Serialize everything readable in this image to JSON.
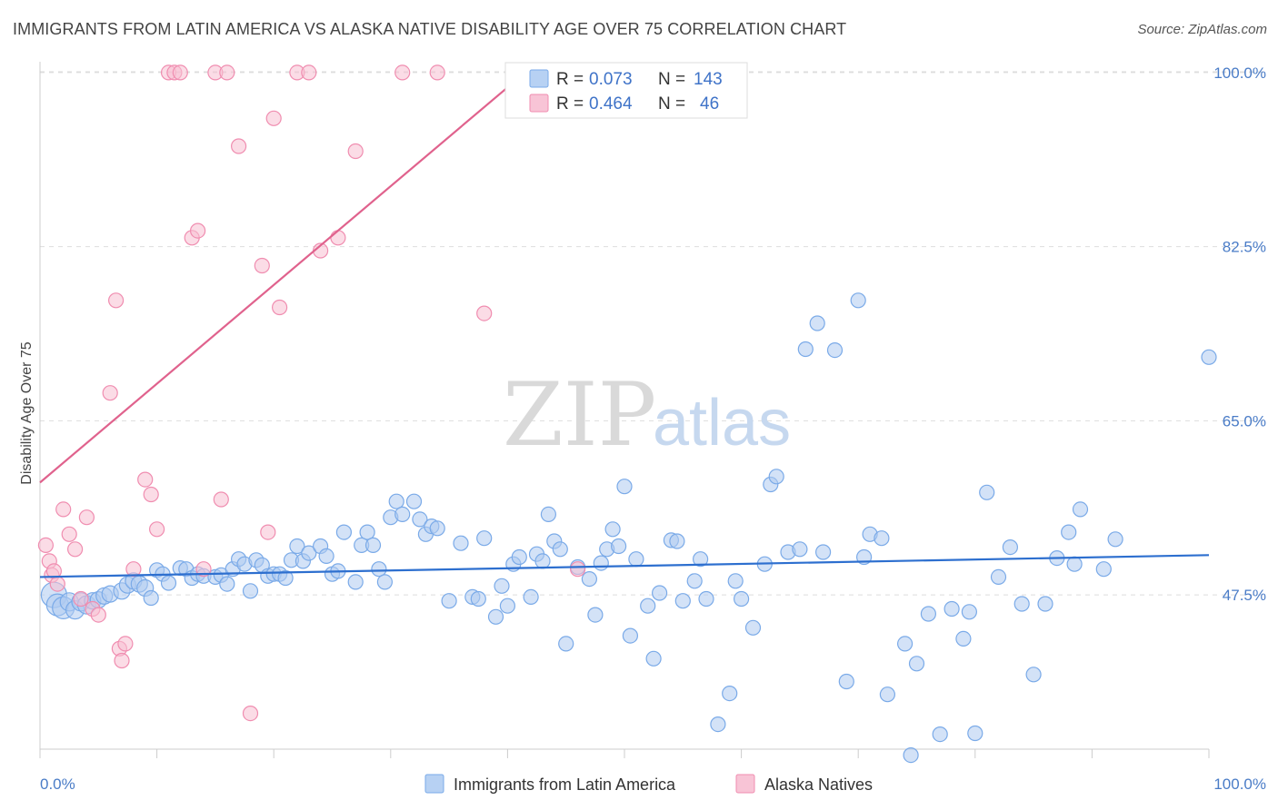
{
  "title": "IMMIGRANTS FROM LATIN AMERICA VS ALASKA NATIVE DISABILITY AGE OVER 75 CORRELATION CHART",
  "source": "Source: ZipAtlas.com",
  "watermark": {
    "zip": "ZIP",
    "atlas": "atlas"
  },
  "colors": {
    "blue": "#7aaae8",
    "blue_fill": "#aecbf1",
    "blue_line": "#2d6fcf",
    "pink": "#f08db0",
    "pink_fill": "#f7bfd2",
    "pink_line": "#e0628d",
    "grid": "#dddddd",
    "tick_label": "#4a7cc7"
  },
  "legend": {
    "rows": [
      {
        "r_label": "R =",
        "r_value": "0.073",
        "n_label": "N =",
        "n_value": "143"
      },
      {
        "r_label": "R =",
        "r_value": "0.464",
        "n_label": "N =",
        "n_value": "46"
      }
    ]
  },
  "chart_data": {
    "type": "scatter",
    "title": "IMMIGRANTS FROM LATIN AMERICA VS ALASKA NATIVE DISABILITY AGE OVER 75 CORRELATION CHART",
    "xlabel": "",
    "ylabel": "Disability Age Over 75",
    "xlim": [
      0,
      100
    ],
    "ylim": [
      32,
      102
    ],
    "x_tick_labels": [
      "0.0%",
      "100.0%"
    ],
    "y_ticks": [
      47.5,
      65.0,
      82.5,
      100.0
    ],
    "y_tick_labels": [
      "47.5%",
      "65.0%",
      "82.5%",
      "100.0%"
    ],
    "grid": true,
    "legend_position": "top-center",
    "series": [
      {
        "name": "Immigrants from Latin America",
        "color": "#7aaae8",
        "trend": {
          "x": [
            0,
            100
          ],
          "y": [
            49.3,
            51.5
          ]
        },
        "points": [
          [
            1.2,
            47.5,
            14
          ],
          [
            1.5,
            46.5,
            12
          ],
          [
            2,
            46.2,
            12
          ],
          [
            2.5,
            46.8,
            10
          ],
          [
            3,
            46,
            10
          ],
          [
            3.5,
            46.8,
            10
          ],
          [
            4,
            46.5,
            10
          ],
          [
            4.5,
            46.9,
            9
          ],
          [
            5,
            47,
            9
          ],
          [
            5.5,
            47.4,
            9
          ],
          [
            6,
            47.6,
            9
          ],
          [
            7,
            47.9,
            9
          ],
          [
            7.5,
            48.5,
            9
          ],
          [
            8,
            48.9,
            9
          ],
          [
            8.5,
            48.6,
            9
          ],
          [
            9,
            48.2,
            9
          ],
          [
            9.5,
            47.2,
            8
          ],
          [
            10,
            50,
            8
          ],
          [
            10.5,
            49.6,
            8
          ],
          [
            11,
            48.7,
            8
          ],
          [
            12,
            50.2,
            8
          ],
          [
            12.5,
            50.1,
            8
          ],
          [
            13,
            49.2,
            8
          ],
          [
            13.5,
            49.6,
            8
          ],
          [
            14,
            49.4,
            8
          ],
          [
            15,
            49.3,
            8
          ],
          [
            15.5,
            49.5,
            8
          ],
          [
            16,
            48.6,
            8
          ],
          [
            16.5,
            50.1,
            8
          ],
          [
            17,
            51.1,
            8
          ],
          [
            17.5,
            50.6,
            8
          ],
          [
            18,
            47.9,
            8
          ],
          [
            18.5,
            51,
            8
          ],
          [
            19,
            50.5,
            8
          ],
          [
            19.5,
            49.4,
            8
          ],
          [
            20,
            49.6,
            8
          ],
          [
            20.5,
            49.6,
            8
          ],
          [
            21,
            49.2,
            8
          ],
          [
            21.5,
            51,
            8
          ],
          [
            22,
            52.4,
            8
          ],
          [
            22.5,
            50.9,
            8
          ],
          [
            23,
            51.7,
            8
          ],
          [
            24,
            52.4,
            8
          ],
          [
            24.5,
            51.4,
            8
          ],
          [
            25,
            49.6,
            8
          ],
          [
            25.5,
            49.9,
            8
          ],
          [
            26,
            53.8,
            8
          ],
          [
            27,
            48.8,
            8
          ],
          [
            27.5,
            52.5,
            8
          ],
          [
            28,
            53.8,
            8
          ],
          [
            28.5,
            52.5,
            8
          ],
          [
            29,
            50.1,
            8
          ],
          [
            29.5,
            48.8,
            8
          ],
          [
            30,
            55.3,
            8
          ],
          [
            30.5,
            56.9,
            8
          ],
          [
            31,
            55.6,
            8
          ],
          [
            32,
            56.9,
            8
          ],
          [
            32.5,
            55.1,
            8
          ],
          [
            33,
            53.6,
            8
          ],
          [
            33.5,
            54.4,
            8
          ],
          [
            34,
            54.2,
            8
          ],
          [
            35,
            46.9,
            8
          ],
          [
            36,
            52.7,
            8
          ],
          [
            37,
            47.3,
            8
          ],
          [
            37.5,
            47.1,
            8
          ],
          [
            38,
            53.2,
            8
          ],
          [
            39,
            45.3,
            8
          ],
          [
            39.5,
            48.4,
            8
          ],
          [
            40,
            46.4,
            8
          ],
          [
            40.5,
            50.6,
            8
          ],
          [
            41,
            51.3,
            8
          ],
          [
            42,
            47.3,
            8
          ],
          [
            42.5,
            51.6,
            8
          ],
          [
            43,
            50.9,
            8
          ],
          [
            43.5,
            55.6,
            8
          ],
          [
            44,
            52.9,
            8
          ],
          [
            44.5,
            52.1,
            8
          ],
          [
            45,
            42.6,
            8
          ],
          [
            46,
            50.3,
            8
          ],
          [
            47,
            49.1,
            8
          ],
          [
            47.5,
            45.5,
            8
          ],
          [
            48,
            50.7,
            8
          ],
          [
            48.5,
            52.1,
            8
          ],
          [
            49,
            54.1,
            8
          ],
          [
            49.5,
            52.4,
            8
          ],
          [
            50,
            58.4,
            8
          ],
          [
            50.5,
            43.4,
            8
          ],
          [
            51,
            51.1,
            8
          ],
          [
            52,
            46.4,
            8
          ],
          [
            52.5,
            41.1,
            8
          ],
          [
            53,
            47.7,
            8
          ],
          [
            54,
            53.0,
            8
          ],
          [
            54.5,
            52.9,
            8
          ],
          [
            55,
            46.9,
            8
          ],
          [
            56,
            48.9,
            8
          ],
          [
            56.5,
            51.1,
            8
          ],
          [
            57,
            47.1,
            8
          ],
          [
            58,
            34.5,
            8
          ],
          [
            59,
            37.6,
            8
          ],
          [
            59.5,
            48.9,
            8
          ],
          [
            60,
            47.1,
            8
          ],
          [
            61,
            44.2,
            8
          ],
          [
            62,
            50.6,
            8
          ],
          [
            62.5,
            58.6,
            8
          ],
          [
            63,
            59.4,
            8
          ],
          [
            64,
            51.8,
            8
          ],
          [
            65,
            52.1,
            8
          ],
          [
            65.5,
            72.2,
            8
          ],
          [
            66.5,
            74.8,
            8
          ],
          [
            67,
            51.8,
            8
          ],
          [
            68,
            72.1,
            8
          ],
          [
            69,
            38.8,
            8
          ],
          [
            70,
            77.1,
            8
          ],
          [
            70.5,
            51.3,
            8
          ],
          [
            71,
            53.6,
            8
          ],
          [
            72,
            53.2,
            8
          ],
          [
            72.5,
            37.5,
            8
          ],
          [
            74,
            42.6,
            8
          ],
          [
            74.5,
            31.4,
            8
          ],
          [
            75,
            40.6,
            8
          ],
          [
            76,
            45.6,
            8
          ],
          [
            77,
            33.5,
            8
          ],
          [
            78,
            46.1,
            8
          ],
          [
            79,
            43.1,
            8
          ],
          [
            79.5,
            45.8,
            8
          ],
          [
            80,
            33.6,
            8
          ],
          [
            81,
            57.8,
            8
          ],
          [
            82,
            49.3,
            8
          ],
          [
            83,
            52.3,
            8
          ],
          [
            84,
            46.6,
            8
          ],
          [
            85,
            39.5,
            8
          ],
          [
            86,
            46.6,
            8
          ],
          [
            87,
            51.2,
            8
          ],
          [
            88,
            53.8,
            8
          ],
          [
            88.5,
            50.6,
            8
          ],
          [
            89,
            56.1,
            8
          ],
          [
            91,
            50.1,
            8
          ],
          [
            92,
            53.1,
            8
          ],
          [
            100,
            71.4,
            8
          ]
        ]
      },
      {
        "name": "Alaska Natives",
        "color": "#f08db0",
        "trend": {
          "x": [
            0,
            41.5
          ],
          "y": [
            58.8,
            100
          ]
        },
        "points": [
          [
            0.5,
            52.5,
            8
          ],
          [
            0.8,
            50.9,
            8
          ],
          [
            1,
            49.5,
            8
          ],
          [
            1.2,
            49.9,
            8
          ],
          [
            1.5,
            48.6,
            8
          ],
          [
            2,
            56.1,
            8
          ],
          [
            2.5,
            53.6,
            8
          ],
          [
            3,
            52.1,
            8
          ],
          [
            3.5,
            47.1,
            8
          ],
          [
            4,
            55.3,
            8
          ],
          [
            4.5,
            46.1,
            8
          ],
          [
            5,
            45.5,
            8
          ],
          [
            6,
            67.8,
            8
          ],
          [
            6.5,
            77.1,
            8
          ],
          [
            6.8,
            42.1,
            8
          ],
          [
            7,
            40.9,
            8
          ],
          [
            7.3,
            42.6,
            8
          ],
          [
            8,
            50.1,
            8
          ],
          [
            9,
            59.1,
            8
          ],
          [
            9.5,
            57.6,
            8
          ],
          [
            10,
            54.1,
            8
          ],
          [
            11,
            100,
            8
          ],
          [
            11.5,
            100,
            8
          ],
          [
            12,
            100,
            8
          ],
          [
            13,
            83.4,
            8
          ],
          [
            13.5,
            84.1,
            8
          ],
          [
            14,
            50.1,
            8
          ],
          [
            15,
            100,
            8
          ],
          [
            15.5,
            57.1,
            8
          ],
          [
            16,
            100,
            8
          ],
          [
            17,
            92.6,
            8
          ],
          [
            18,
            35.6,
            8
          ],
          [
            19,
            80.6,
            8
          ],
          [
            19.5,
            53.8,
            8
          ],
          [
            20,
            95.4,
            8
          ],
          [
            20.5,
            76.4,
            8
          ],
          [
            22,
            100,
            8
          ],
          [
            23,
            100,
            8
          ],
          [
            24,
            82.1,
            8
          ],
          [
            25.5,
            83.4,
            8
          ],
          [
            27,
            92.1,
            8
          ],
          [
            31,
            100,
            8
          ],
          [
            34,
            100,
            8
          ],
          [
            38,
            75.8,
            8
          ],
          [
            42,
            100,
            8
          ],
          [
            46,
            50.1,
            8
          ]
        ]
      }
    ]
  },
  "bottom_legend": [
    {
      "label": "Immigrants from Latin America"
    },
    {
      "label": "Alaska Natives"
    }
  ]
}
